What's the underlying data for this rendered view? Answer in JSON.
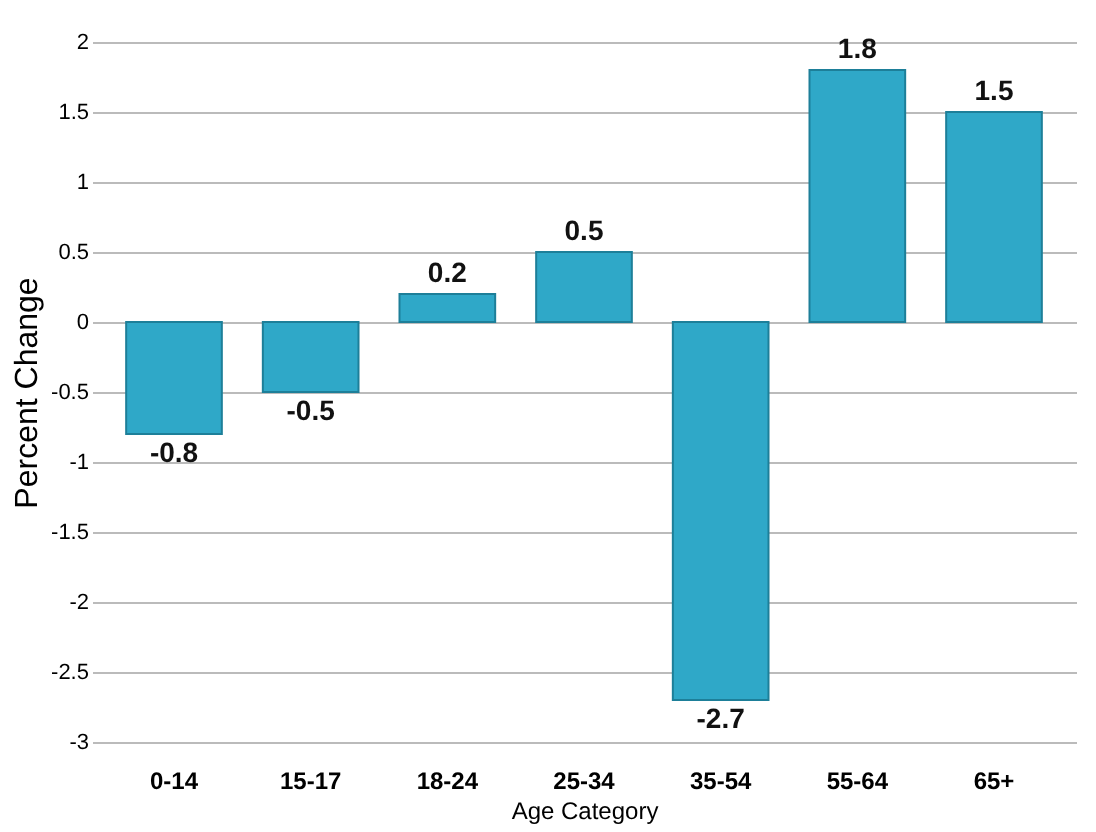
{
  "chart_data": {
    "type": "bar",
    "xlabel": "Age Category",
    "ylabel": "Percent Change",
    "categories": [
      "0-14",
      "15-17",
      "18-24",
      "25-34",
      "35-54",
      "55-64",
      "65+"
    ],
    "values": [
      -0.8,
      -0.5,
      0.2,
      0.5,
      -2.7,
      1.8,
      1.5
    ],
    "color": "#2fa8c8",
    "ylim": [
      -3,
      2
    ],
    "yticks": [
      -3,
      -2.5,
      -2,
      -1.5,
      -1,
      -0.5,
      0,
      0.5,
      1,
      1.5,
      2
    ],
    "grid": "y",
    "data_labels": true
  }
}
